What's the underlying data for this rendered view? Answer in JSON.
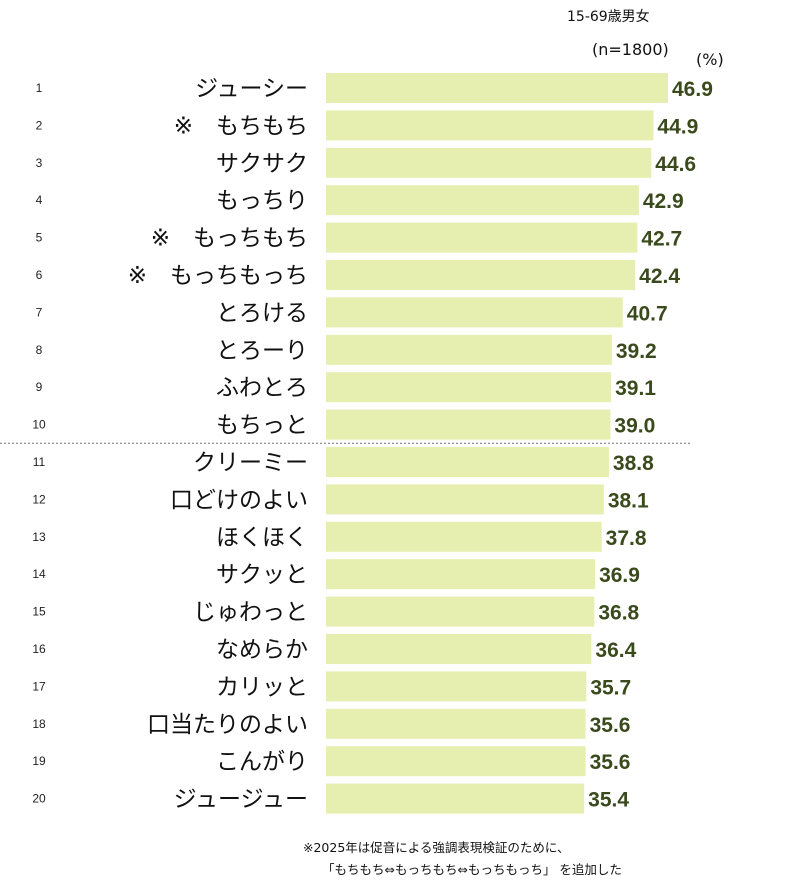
{
  "header": {
    "population": "15-69歳男女",
    "sample": "(n=1800)",
    "unit": "(%)"
  },
  "colors": {
    "bar": "#e6eeb0",
    "value_text": "#3a4a1c",
    "divider": "#777777"
  },
  "chart_data": {
    "type": "bar",
    "orientation": "horizontal",
    "title": "",
    "xlabel": "",
    "ylabel": "",
    "unit": "(%)",
    "ranks": [
      "1",
      "2",
      "3",
      "4",
      "5",
      "6",
      "7",
      "8",
      "9",
      "10",
      "11",
      "12",
      "13",
      "14",
      "15",
      "16",
      "17",
      "18",
      "19",
      "20"
    ],
    "categories": [
      "ジューシー",
      "※　もちもち",
      "サクサク",
      "もっちり",
      "※　もっちもち",
      "※　もっちもっち",
      "とろける",
      "とろーり",
      "ふわとろ",
      "もちっと",
      "クリーミー",
      "口どけのよい",
      "ほくほく",
      "サクッと",
      "じゅわっと",
      "なめらか",
      "カリッと",
      "口当たりのよい",
      "こんがり",
      "ジュージュー"
    ],
    "values": [
      46.9,
      44.9,
      44.6,
      42.9,
      42.7,
      42.4,
      40.7,
      39.2,
      39.1,
      39.0,
      38.8,
      38.1,
      37.8,
      36.9,
      36.8,
      36.4,
      35.7,
      35.6,
      35.6,
      35.4
    ],
    "value_labels": [
      "46.9",
      "44.9",
      "44.6",
      "42.9",
      "42.7",
      "42.4",
      "40.7",
      "39.2",
      "39.1",
      "39.0",
      "38.8",
      "38.1",
      "37.8",
      "36.9",
      "36.8",
      "36.4",
      "35.7",
      "35.6",
      "35.6",
      "35.4"
    ],
    "divider_after_rank": 10,
    "grid": false,
    "legend": "none"
  },
  "footnote": {
    "line1": "※2025年は促音による強調表現検証のために、",
    "line2": "「もちもち⇔もっちもち⇔もっちもっち」 を追加した"
  }
}
